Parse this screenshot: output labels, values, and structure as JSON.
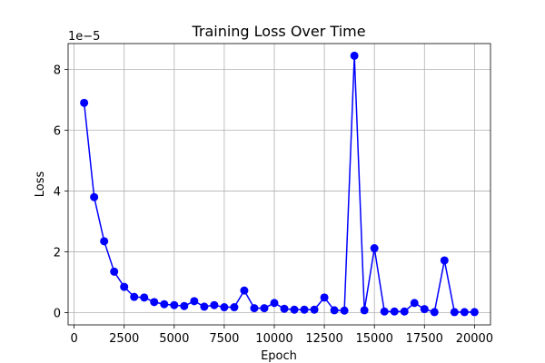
{
  "chart_data": {
    "type": "line",
    "title": "Training Loss Over Time",
    "xlabel": "Epoch",
    "ylabel": "Loss",
    "y_offset_label": "1e−5",
    "xlim": [
      -300,
      20800
    ],
    "ylim": [
      -0.4,
      8.85
    ],
    "xticks": [
      0,
      2500,
      5000,
      7500,
      10000,
      12500,
      15000,
      17500,
      20000
    ],
    "yticks": [
      0,
      2,
      4,
      6,
      8
    ],
    "grid": true,
    "series": [
      {
        "color": "#0000ff",
        "marker": "circle",
        "x": [
          500,
          1000,
          1500,
          2000,
          2500,
          3000,
          3500,
          4000,
          4500,
          5000,
          5500,
          6000,
          6500,
          7000,
          7500,
          8000,
          8500,
          9000,
          9500,
          10000,
          10500,
          11000,
          11500,
          12000,
          12500,
          13000,
          13500,
          14000,
          14500,
          15000,
          15500,
          16000,
          16500,
          17000,
          17500,
          18000,
          18500,
          19000,
          19500,
          20000
        ],
        "y": [
          6.9,
          3.8,
          2.35,
          1.35,
          0.85,
          0.52,
          0.5,
          0.35,
          0.28,
          0.25,
          0.22,
          0.38,
          0.2,
          0.25,
          0.18,
          0.18,
          0.73,
          0.15,
          0.15,
          0.32,
          0.13,
          0.1,
          0.1,
          0.1,
          0.5,
          0.08,
          0.07,
          8.45,
          0.08,
          2.12,
          0.04,
          0.04,
          0.04,
          0.32,
          0.12,
          0.02,
          1.72,
          0.02,
          0.02,
          0.02
        ]
      }
    ]
  }
}
